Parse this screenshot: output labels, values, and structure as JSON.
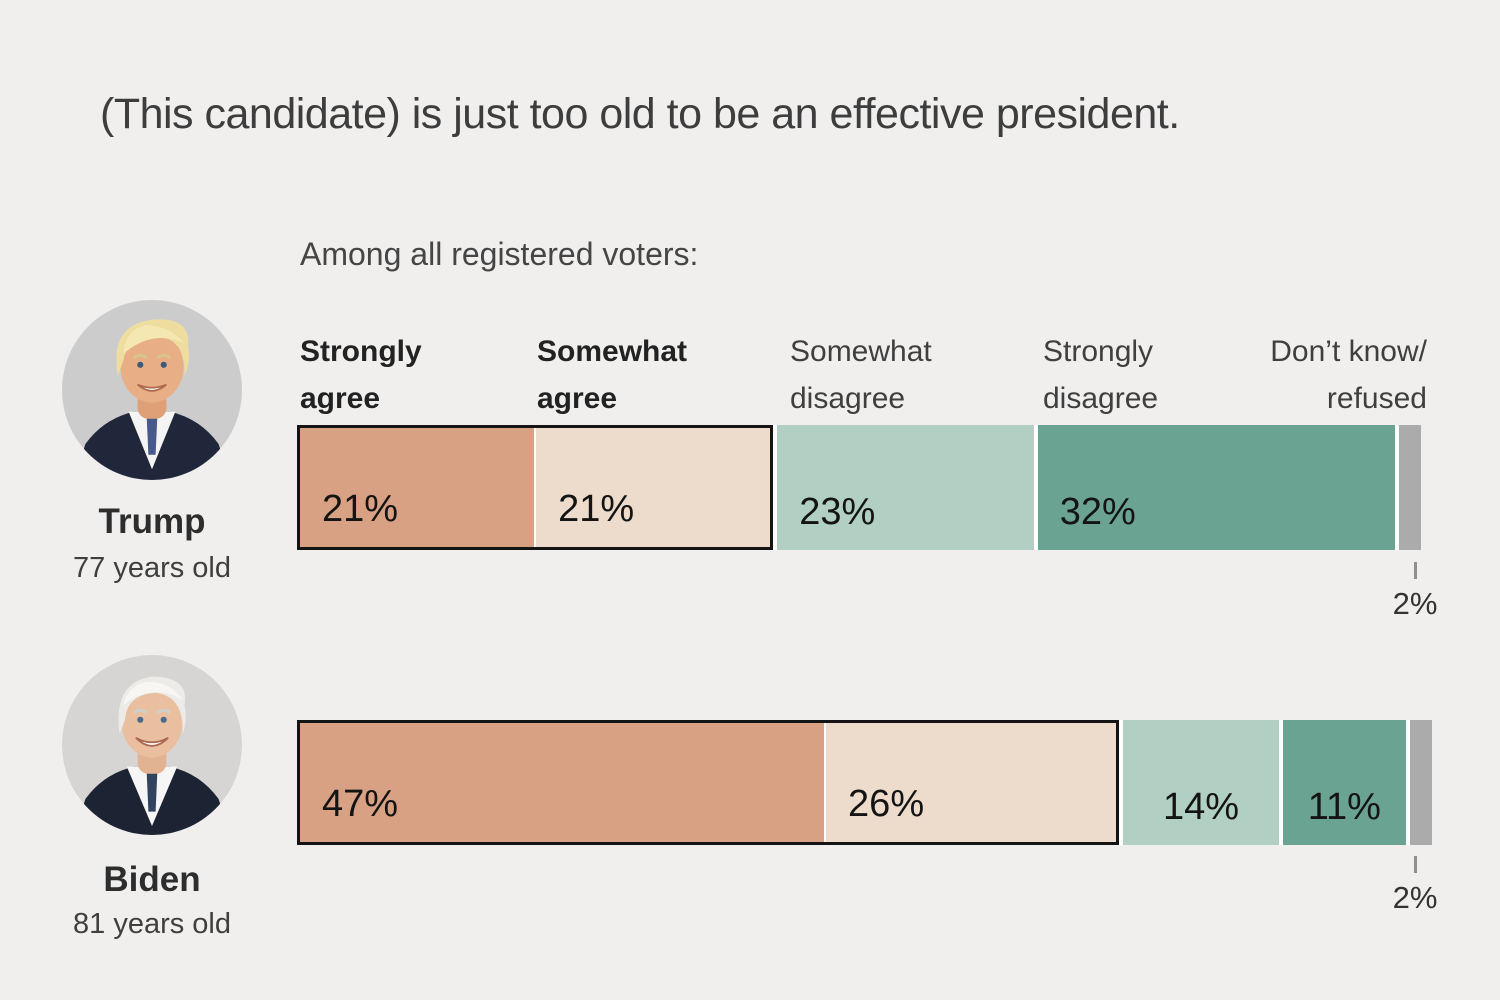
{
  "title": "(This candidate) is just too old to be an effective president.",
  "subtitle": "Among all registered voters:",
  "chart_data": {
    "type": "bar",
    "orientation": "horizontal",
    "stacked": true,
    "unit": "%",
    "xlim": [
      0,
      100
    ],
    "grid": false,
    "legend_position": "top-column-headers",
    "categories": [
      "Strongly agree",
      "Somewhat agree",
      "Somewhat disagree",
      "Strongly disagree",
      "Don’t know/ refused"
    ],
    "segment_colors": [
      "#d8a183",
      "#eddccb",
      "#b1cfc3",
      "#6ba392",
      "#ababab"
    ],
    "agree_outline_color": "#141414",
    "series": [
      {
        "name": "Trump",
        "age_label": "77 years old",
        "values": [
          21,
          21,
          23,
          32,
          2
        ],
        "value_labels": [
          "21%",
          "21%",
          "23%",
          "32%",
          "2%"
        ]
      },
      {
        "name": "Biden",
        "age_label": "81 years old",
        "values": [
          47,
          26,
          14,
          11,
          2
        ],
        "value_labels": [
          "47%",
          "26%",
          "14%",
          "11%",
          "2%"
        ]
      }
    ]
  },
  "portraits": {
    "trump": {
      "background": "#cccccc",
      "hair": "#eedd9e",
      "skin": "#e8ae86",
      "suit": "#20273a"
    },
    "biden": {
      "background": "#d6d5d3",
      "hair": "#ecebe8",
      "skin": "#eabf9f",
      "suit": "#1c2433"
    }
  }
}
